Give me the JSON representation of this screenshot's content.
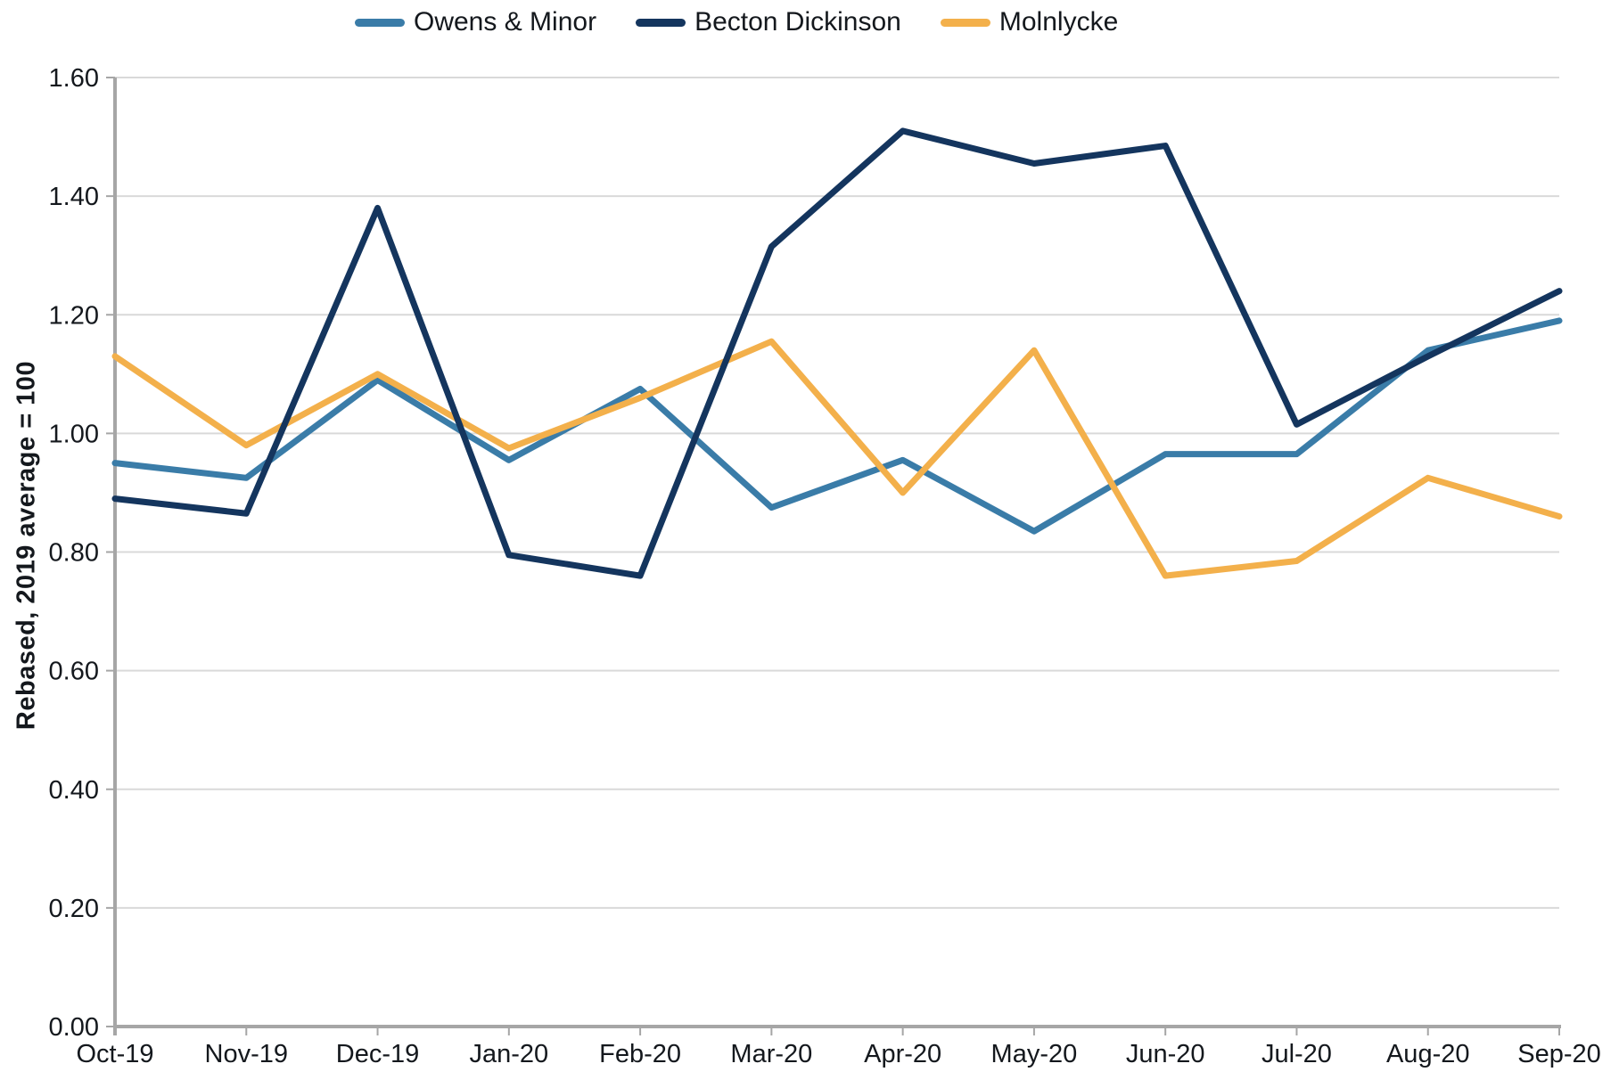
{
  "chart_data": {
    "type": "line",
    "title": "",
    "ylabel": "Rebased, 2019 average = 100",
    "xlabel": "",
    "x": [
      "Oct-19",
      "Nov-19",
      "Dec-19",
      "Jan-20",
      "Feb-20",
      "Mar-20",
      "Apr-20",
      "May-20",
      "Jun-20",
      "Jul-20",
      "Aug-20",
      "Sep-20"
    ],
    "ylim": [
      0,
      1.6
    ],
    "ytick_step": 0.2,
    "ytick_labels": [
      "0.00",
      "0.20",
      "0.40",
      "0.60",
      "0.80",
      "1.00",
      "1.20",
      "1.40",
      "1.60"
    ],
    "grid": "horizontal",
    "legend_position": "top",
    "series": [
      {
        "name": "Owens & Minor",
        "color": "#3A7CA8",
        "values": [
          0.95,
          0.925,
          1.09,
          0.955,
          1.075,
          0.875,
          0.955,
          0.835,
          0.965,
          0.965,
          1.14,
          1.19
        ]
      },
      {
        "name": "Becton Dickinson",
        "color": "#14355E",
        "values": [
          0.89,
          0.865,
          1.38,
          0.795,
          0.76,
          1.315,
          1.51,
          1.455,
          1.485,
          1.015,
          1.13,
          1.24
        ]
      },
      {
        "name": "Molnlycke",
        "color": "#F3B04B",
        "values": [
          1.13,
          0.98,
          1.1,
          0.975,
          1.06,
          1.155,
          0.9,
          1.14,
          0.76,
          0.785,
          0.925,
          0.86
        ]
      }
    ]
  },
  "colors": {
    "gridline": "#D9D9D9",
    "axis": "#A6A6A6",
    "text": "#14181D",
    "background": "#FFFFFF"
  }
}
